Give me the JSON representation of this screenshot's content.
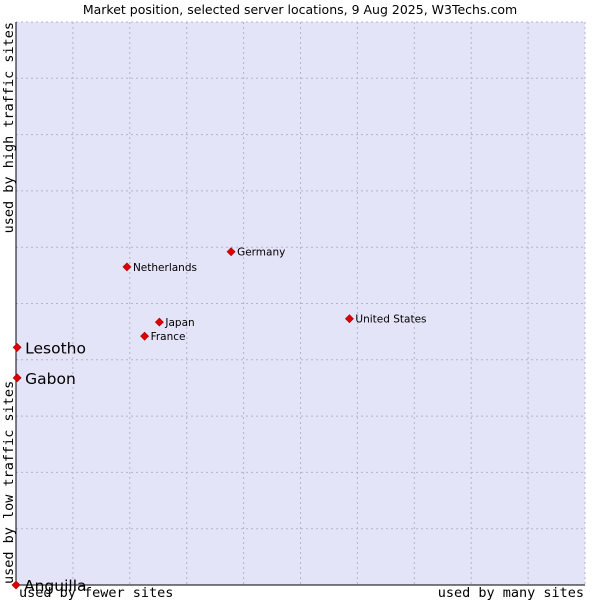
{
  "chart_data": {
    "type": "scatter",
    "title": "Market position, selected server locations, 9 Aug 2025, W3Techs.com",
    "xlabel_left": "used by fewer sites",
    "xlabel_right": "used by many sites",
    "ylabel_top": "used by high traffic sites",
    "ylabel_bottom": "used by low traffic sites",
    "xlim": [
      0,
      100
    ],
    "ylim": [
      0,
      100
    ],
    "grid": true,
    "colors": {
      "plot_bg": "#e4e4f8",
      "grid": "#b4b4c8",
      "axis": "#000000",
      "marker": "#e00000",
      "marker_stroke": "#a00000",
      "text": "#000000"
    },
    "points": [
      {
        "label": "Germany",
        "x": 37.8,
        "y": 59.2,
        "emphasis": false
      },
      {
        "label": "Netherlands",
        "x": 19.5,
        "y": 56.5,
        "emphasis": false
      },
      {
        "label": "United States",
        "x": 58.6,
        "y": 47.3,
        "emphasis": false
      },
      {
        "label": "Japan",
        "x": 25.2,
        "y": 46.7,
        "emphasis": false
      },
      {
        "label": "France",
        "x": 22.6,
        "y": 44.2,
        "emphasis": false
      },
      {
        "label": "Lesotho",
        "x": 0.2,
        "y": 42.2,
        "emphasis": true
      },
      {
        "label": "Gabon",
        "x": 0.2,
        "y": 36.8,
        "emphasis": true
      },
      {
        "label": "Anguilla",
        "x": 0.0,
        "y": 0.0,
        "emphasis": true
      }
    ]
  }
}
